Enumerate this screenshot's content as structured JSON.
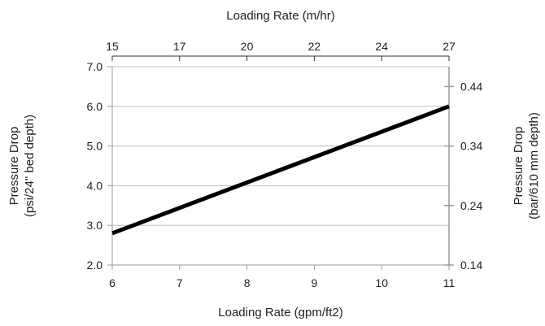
{
  "chart_data": {
    "type": "line",
    "x_bottom": {
      "label": "Loading Rate (gpm/ft2)",
      "min": 6,
      "max": 11,
      "ticks": [
        "6",
        "7",
        "8",
        "9",
        "10",
        "11"
      ]
    },
    "x_top": {
      "label": "Loading Rate (m/hr)",
      "ticks": [
        {
          "label": "15",
          "at_bottom_value": 6.0
        },
        {
          "label": "17",
          "at_bottom_value": 7.0
        },
        {
          "label": "20",
          "at_bottom_value": 8.0
        },
        {
          "label": "22",
          "at_bottom_value": 9.0
        },
        {
          "label": "24",
          "at_bottom_value": 10.0
        },
        {
          "label": "27",
          "at_bottom_value": 11.0
        }
      ]
    },
    "y_left": {
      "label_lines": [
        "Pressure Drop",
        "(psi/24\" bed depth)"
      ],
      "min": 2.0,
      "max": 7.0,
      "ticks": [
        "2.0",
        "3.0",
        "4.0",
        "5.0",
        "6.0",
        "7.0"
      ]
    },
    "y_right": {
      "label_lines": [
        "Pressure Drop",
        "(bar/610 mm depth)"
      ],
      "ticks": [
        {
          "label": "0.14",
          "at_left_value": 2.0
        },
        {
          "label": "0.24",
          "at_left_value": 3.5
        },
        {
          "label": "0.34",
          "at_left_value": 5.0
        },
        {
          "label": "0.44",
          "at_left_value": 6.5
        }
      ]
    },
    "series": [
      {
        "x": [
          6,
          11
        ],
        "y": [
          2.8,
          6.0
        ],
        "color": "#000000"
      }
    ],
    "grid": "horizontal",
    "legend": "none"
  }
}
